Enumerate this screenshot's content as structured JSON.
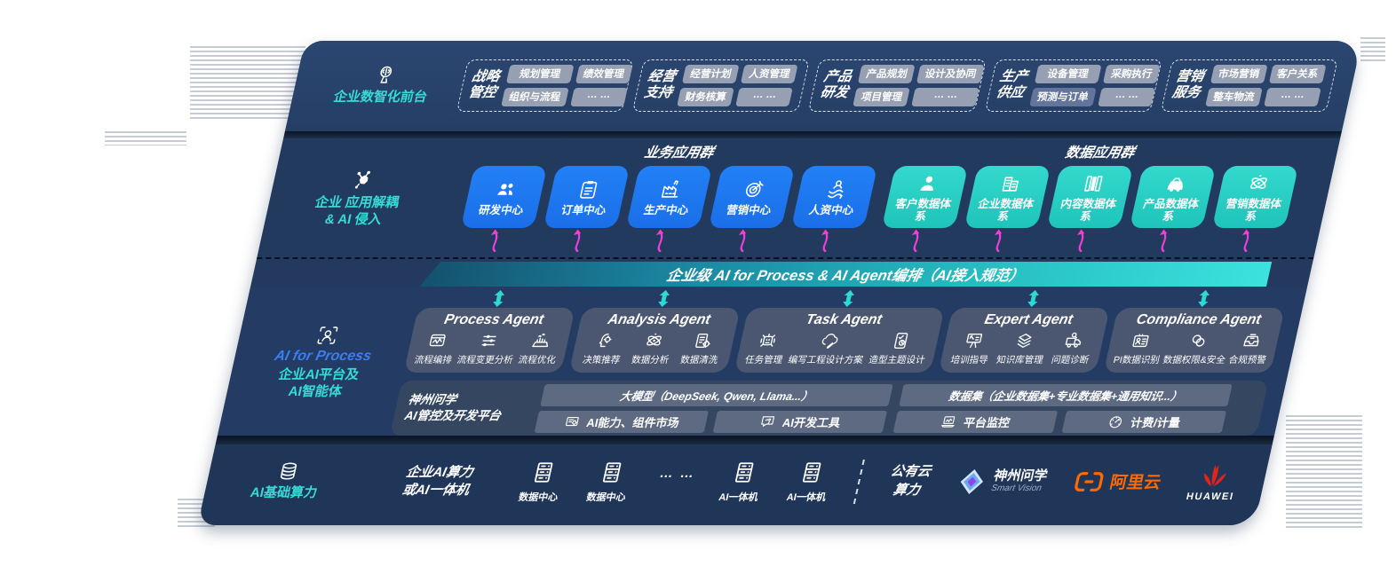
{
  "colors": {
    "accent_blue": "#1e78f0",
    "accent_teal": "#2ed6ca",
    "magenta": "#ee3fd8",
    "panel_navy": "#243c62",
    "bar_gradient": [
      "#14516e",
      "#3be2de"
    ],
    "alibaba_orange": "#ff6a00",
    "huawei_red": "#e2231a"
  },
  "front_layer": {
    "label": "企业数智化前台",
    "icon": "brain-head-icon",
    "groups": [
      {
        "title_lines": [
          "战略",
          "管控"
        ],
        "chips": [
          {
            "label": "规划管理"
          },
          {
            "label": "绩效管理"
          },
          {
            "label": "组织与流程"
          },
          {
            "label": "… …"
          }
        ]
      },
      {
        "title_lines": [
          "经营",
          "支持"
        ],
        "chips": [
          {
            "label": "经营计划"
          },
          {
            "label": "人资管理"
          },
          {
            "label": "财务核算"
          },
          {
            "label": "… …"
          }
        ]
      },
      {
        "title_lines": [
          "产品",
          "研发"
        ],
        "chips": [
          {
            "label": "产品规划"
          },
          {
            "label": "设计及协同"
          },
          {
            "label": "项目管理"
          },
          {
            "label": "… …"
          }
        ]
      },
      {
        "title_lines": [
          "生产",
          "供应"
        ],
        "chips": [
          {
            "label": "设备管理"
          },
          {
            "label": "采购执行"
          },
          {
            "label": "预测与订单",
            "variant": "dark"
          },
          {
            "label": "… …"
          }
        ]
      },
      {
        "title_lines": [
          "营销",
          "服务"
        ],
        "chips": [
          {
            "label": "市场营销"
          },
          {
            "label": "客户关系"
          },
          {
            "label": "整车物流"
          },
          {
            "label": "… …"
          }
        ]
      }
    ]
  },
  "app_layer": {
    "label_lines": [
      "企业 应用解耦",
      "& AI 侵入"
    ],
    "icon": "molecule-icon",
    "business_group": {
      "title": "业务应用群",
      "items": [
        {
          "label": "研发中心",
          "icon": "team"
        },
        {
          "label": "订单中心",
          "icon": "clipboard"
        },
        {
          "label": "生产中心",
          "icon": "factory"
        },
        {
          "label": "营销中心",
          "icon": "target"
        },
        {
          "label": "人资中心",
          "icon": "people-flow"
        }
      ]
    },
    "data_group": {
      "title": "数据应用群",
      "items": [
        {
          "label": "客户数据体系",
          "icon": "person"
        },
        {
          "label": "企业数据体系",
          "icon": "building"
        },
        {
          "label": "内容数据体系",
          "icon": "books"
        },
        {
          "label": "产品数据体系",
          "icon": "car"
        },
        {
          "label": "营销数据体系",
          "icon": "atom"
        }
      ]
    }
  },
  "orchestration_bar": {
    "label": "企业级 AI for Process & AI Agent编排（AI接入规范）"
  },
  "agent_layer": {
    "label_title": "AI for Process",
    "label_lines": [
      "企业AI平台及",
      "AI智能体"
    ],
    "icon": "person-scan-icon",
    "agents": [
      {
        "title": "Process Agent",
        "items": [
          {
            "label": "流程编排",
            "icon": "monitor-wave"
          },
          {
            "label": "流程变更分析",
            "icon": "sliders"
          },
          {
            "label": "流程优化",
            "icon": "conveyor"
          }
        ]
      },
      {
        "title": "Analysis Agent",
        "items": [
          {
            "label": "决策推荐",
            "icon": "head-gear"
          },
          {
            "label": "数据分析",
            "icon": "atom"
          },
          {
            "label": "数据清洗",
            "icon": "doc-gear"
          }
        ]
      },
      {
        "title": "Task Agent",
        "items": [
          {
            "label": "任务管理",
            "icon": "robot"
          },
          {
            "label": "编写工程设计方案",
            "icon": "cloud-edit"
          },
          {
            "label": "造型主题设计",
            "icon": "tablet-check"
          }
        ]
      },
      {
        "title": "Expert Agent",
        "items": [
          {
            "label": "培训指导",
            "icon": "training"
          },
          {
            "label": "知识库管理",
            "icon": "layers"
          },
          {
            "label": "问题诊断",
            "icon": "truck-search"
          }
        ]
      },
      {
        "title": "Compliance Agent",
        "items": [
          {
            "label": "PI数据识别",
            "icon": "id-card"
          },
          {
            "label": "数据权限&安全",
            "icon": "shield-link"
          },
          {
            "label": "合规预警",
            "icon": "inbox-alert"
          }
        ]
      }
    ],
    "platform": {
      "label_lines": [
        "神州问学",
        "AI管控及开发平台"
      ],
      "model_bar": "大模型（DeepSeek, Qwen, Llama...）",
      "model_tools": [
        {
          "label": "AI能力、组件市场",
          "icon": "chip"
        },
        {
          "label": "AI开发工具",
          "icon": "chat-tool"
        }
      ],
      "data_bar": "数据集（企业数据集+专业数据集+通用知识...）",
      "data_tools": [
        {
          "label": "平台监控",
          "icon": "monitor-chart"
        },
        {
          "label": "计费/计量",
          "icon": "gauge"
        }
      ]
    }
  },
  "compute_layer": {
    "label": "AI基础算力",
    "icon": "database-icon",
    "left_title_lines": [
      "企业AI算力",
      "或AI一体机"
    ],
    "nodes": [
      {
        "label": "数据中心",
        "icon": "server"
      },
      {
        "label": "数据中心",
        "icon": "server"
      },
      {
        "label": "… …",
        "icon": "dots"
      },
      {
        "label": "AI一体机",
        "icon": "server"
      },
      {
        "label": "AI一体机",
        "icon": "server"
      }
    ],
    "public_cloud_lines": [
      "公有云",
      "算力"
    ],
    "vendors": [
      {
        "name": "神州问学",
        "sub": "Smart Vision",
        "icon": "smartvision-logo"
      },
      {
        "name": "阿里云",
        "icon": "aliyun-logo"
      },
      {
        "name": "HUAWEI",
        "icon": "huawei-logo"
      }
    ]
  }
}
